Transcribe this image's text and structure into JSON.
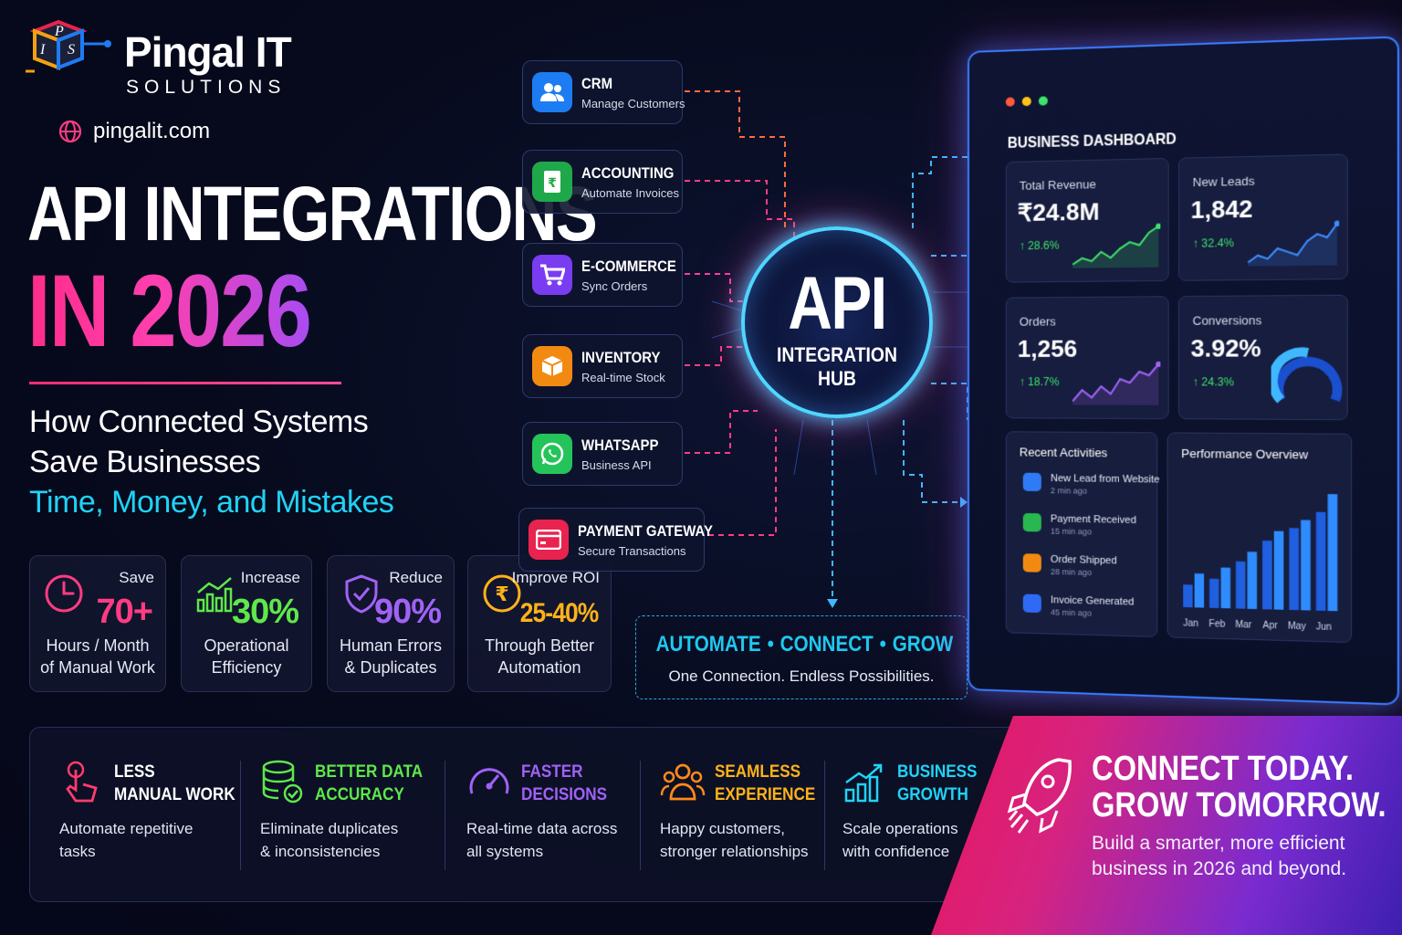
{
  "brand": {
    "name": "Pingal IT",
    "tagline": "SOLUTIONS",
    "website": "pingalit.com",
    "logo_letters": [
      "P",
      "I",
      "S"
    ]
  },
  "headline": {
    "line1": "API INTEGRATIONS",
    "line2": "IN 2026",
    "sub1": "How Connected Systems",
    "sub2": "Save Businesses",
    "sub3": "Time, Money, and Mistakes"
  },
  "stats": [
    {
      "icon": "clock-icon",
      "label": "Save",
      "value": "70+",
      "desc1": "Hours / Month",
      "desc2": "of Manual Work",
      "color": "#ff3c82"
    },
    {
      "icon": "growth-chart-icon",
      "label": "Increase",
      "value": "30%",
      "desc1": "Operational",
      "desc2": "Efficiency",
      "color": "#5ee84a"
    },
    {
      "icon": "shield-check-icon",
      "label": "Reduce",
      "value": "90%",
      "desc1": "Human Errors",
      "desc2": "& Duplicates",
      "color": "#a062f5"
    },
    {
      "icon": "rupee-coin-icon",
      "label": "Improve ROI",
      "value": "25-40%",
      "desc1": "Through Better",
      "desc2": "Automation",
      "color": "#ffb21a"
    }
  ],
  "apps": [
    {
      "title": "CRM",
      "sub": "Manage Customers",
      "icon": "users-icon",
      "color": "#1e7cf2"
    },
    {
      "title": "ACCOUNTING",
      "sub": "Automate Invoices",
      "icon": "invoice-icon",
      "color": "#1fa84a"
    },
    {
      "title": "E-COMMERCE",
      "sub": "Sync Orders",
      "icon": "cart-icon",
      "color": "#7a3cf0"
    },
    {
      "title": "INVENTORY",
      "sub": "Real-time Stock",
      "icon": "box-icon",
      "color": "#f28a12"
    },
    {
      "title": "WHATSAPP",
      "sub": "Business API",
      "icon": "whatsapp-icon",
      "color": "#25c45a"
    },
    {
      "title": "PAYMENT GATEWAY",
      "sub": "Secure Transactions",
      "icon": "card-icon",
      "color": "#e8234f"
    }
  ],
  "hub": {
    "title": "API",
    "line1": "INTEGRATION",
    "line2": "HUB"
  },
  "automate": {
    "words": [
      "AUTOMATE",
      "CONNECT",
      "GROW"
    ],
    "separator": "•",
    "tagline": "One Connection. Endless Possibilities."
  },
  "dashboard": {
    "title": "BUSINESS DASHBOARD",
    "kpis": [
      {
        "label": "Total Revenue",
        "value": "₹24.8M",
        "change": "↑ 28.6%",
        "trend": [
          3,
          5,
          4,
          7,
          5,
          8,
          10,
          9,
          13,
          15
        ]
      },
      {
        "label": "New Leads",
        "value": "1,842",
        "change": "↑ 32.4%",
        "trend": [
          2,
          4,
          3,
          6,
          5,
          4,
          8,
          10,
          9,
          13
        ]
      },
      {
        "label": "Orders",
        "value": "1,256",
        "change": "↑ 18.7%",
        "trend": [
          3,
          6,
          4,
          7,
          5,
          9,
          8,
          11,
          10,
          13
        ]
      },
      {
        "label": "Conversions",
        "value": "3.92%",
        "change": "↑ 24.3%"
      }
    ],
    "activities_title": "Recent Activities",
    "activities": [
      {
        "text": "New Lead from Website",
        "time": "2 min ago",
        "color": "#2f7af5"
      },
      {
        "text": "Payment Received",
        "time": "15 min ago",
        "color": "#28b84f"
      },
      {
        "text": "Order Shipped",
        "time": "28 min ago",
        "color": "#f28a12"
      },
      {
        "text": "Invoice Generated",
        "time": "45 min ago",
        "color": "#2f6af5"
      }
    ],
    "performance": {
      "title": "Performance Overview",
      "months": [
        "Jan",
        "Feb",
        "Mar",
        "Apr",
        "May",
        "Jun"
      ],
      "values": [
        [
          28,
          42
        ],
        [
          36,
          50
        ],
        [
          58,
          70
        ],
        [
          84,
          96
        ],
        [
          100,
          110
        ],
        [
          120,
          142
        ]
      ]
    }
  },
  "benefits": [
    {
      "title1": "LESS",
      "title2": "MANUAL WORK",
      "desc1": "Automate repetitive",
      "desc2": "tasks",
      "color": "#ffffff",
      "icon": "tap-hand-icon",
      "iconColor": "#ff3c6e"
    },
    {
      "title1": "BETTER DATA",
      "title2": "ACCURACY",
      "desc1": "Eliminate duplicates",
      "desc2": "& inconsistencies",
      "color": "#5ee84a",
      "icon": "database-check-icon",
      "iconColor": "#5ee84a"
    },
    {
      "title1": "FASTER",
      "title2": "DECISIONS",
      "desc1": "Real-time data across",
      "desc2": "all systems",
      "color": "#a062f5",
      "icon": "speedometer-icon",
      "iconColor": "#a062f5"
    },
    {
      "title1": "SEAMLESS",
      "title2": "EXPERIENCE",
      "desc1": "Happy customers,",
      "desc2": "stronger relationships",
      "color": "#ffb21a",
      "icon": "people-icon",
      "iconColor": "#ff8a1a"
    },
    {
      "title1": "BUSINESS",
      "title2": "GROWTH",
      "desc1": "Scale operations",
      "desc2": "with confidence",
      "color": "#1fd3f6",
      "icon": "growth-bars-icon",
      "iconColor": "#1fd3f6"
    }
  ],
  "cta": {
    "line1": "CONNECT TODAY.",
    "line2": "GROW TOMORROW.",
    "desc1": "Build a smarter, more efficient",
    "desc2": "business in 2026 and beyond."
  }
}
